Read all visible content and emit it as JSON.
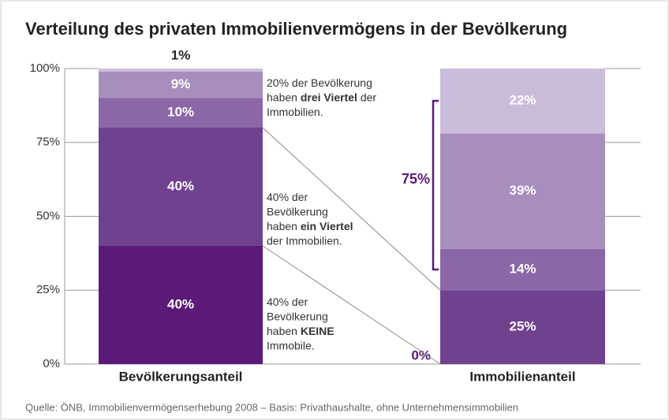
{
  "chart_data": {
    "type": "stacked-bar",
    "title": "Verteilung des privaten Immobilienvermögens in der Bevölkerung",
    "categories": [
      "Bevölkerungsanteil",
      "Immobilienanteil"
    ],
    "series": [
      {
        "color": "#5b1a78",
        "values": [
          40,
          0
        ],
        "value_labels": [
          "40%",
          "0%"
        ]
      },
      {
        "color": "#70418e",
        "values": [
          40,
          25
        ],
        "value_labels": [
          "40%",
          "25%"
        ]
      },
      {
        "color": "#8b67a7",
        "values": [
          10,
          14
        ],
        "value_labels": [
          "10%",
          "14%"
        ]
      },
      {
        "color": "#a88ebf",
        "values": [
          9,
          39
        ],
        "value_labels": [
          "9%",
          "39%"
        ]
      },
      {
        "color": "#cbbcdb",
        "values": [
          1,
          22
        ],
        "value_labels": [
          "1%",
          "22%"
        ]
      }
    ],
    "ylim": [
      0,
      100
    ],
    "yticks": [
      {
        "value": 0,
        "label": "0%"
      },
      {
        "value": 25,
        "label": "25%"
      },
      {
        "value": 50,
        "label": "50%"
      },
      {
        "value": 75,
        "label": "75%"
      },
      {
        "value": 100,
        "label": "100%"
      }
    ],
    "grid": true,
    "annotations": [
      {
        "lines": [
          [
            {
              "text": "20% der Bevölkerung"
            }
          ],
          [
            {
              "text": "haben "
            },
            {
              "text": "drei Viertel",
              "bold": true
            },
            {
              "text": " der"
            }
          ],
          [
            {
              "text": "Immobilien."
            }
          ]
        ]
      },
      {
        "lines": [
          [
            {
              "text": "40% der"
            }
          ],
          [
            {
              "text": "Bevölkerung"
            }
          ],
          [
            {
              "text": "haben "
            },
            {
              "text": "ein Viertel",
              "bold": true
            }
          ],
          [
            {
              "text": "der Immobilien."
            }
          ]
        ]
      },
      {
        "lines": [
          [
            {
              "text": "40% der"
            }
          ],
          [
            {
              "text": "Bevölkerung"
            }
          ],
          [
            {
              "text": "haben "
            },
            {
              "text": "KEINE",
              "bold": true
            }
          ],
          [
            {
              "text": "Immobile."
            }
          ]
        ]
      }
    ],
    "bracket_label": "75%",
    "source": "Quelle: ÖNB, Immobilienvermögenserhebung 2008 – Basis: Privathaushalte, ohne Unternehmensimmobilien"
  }
}
